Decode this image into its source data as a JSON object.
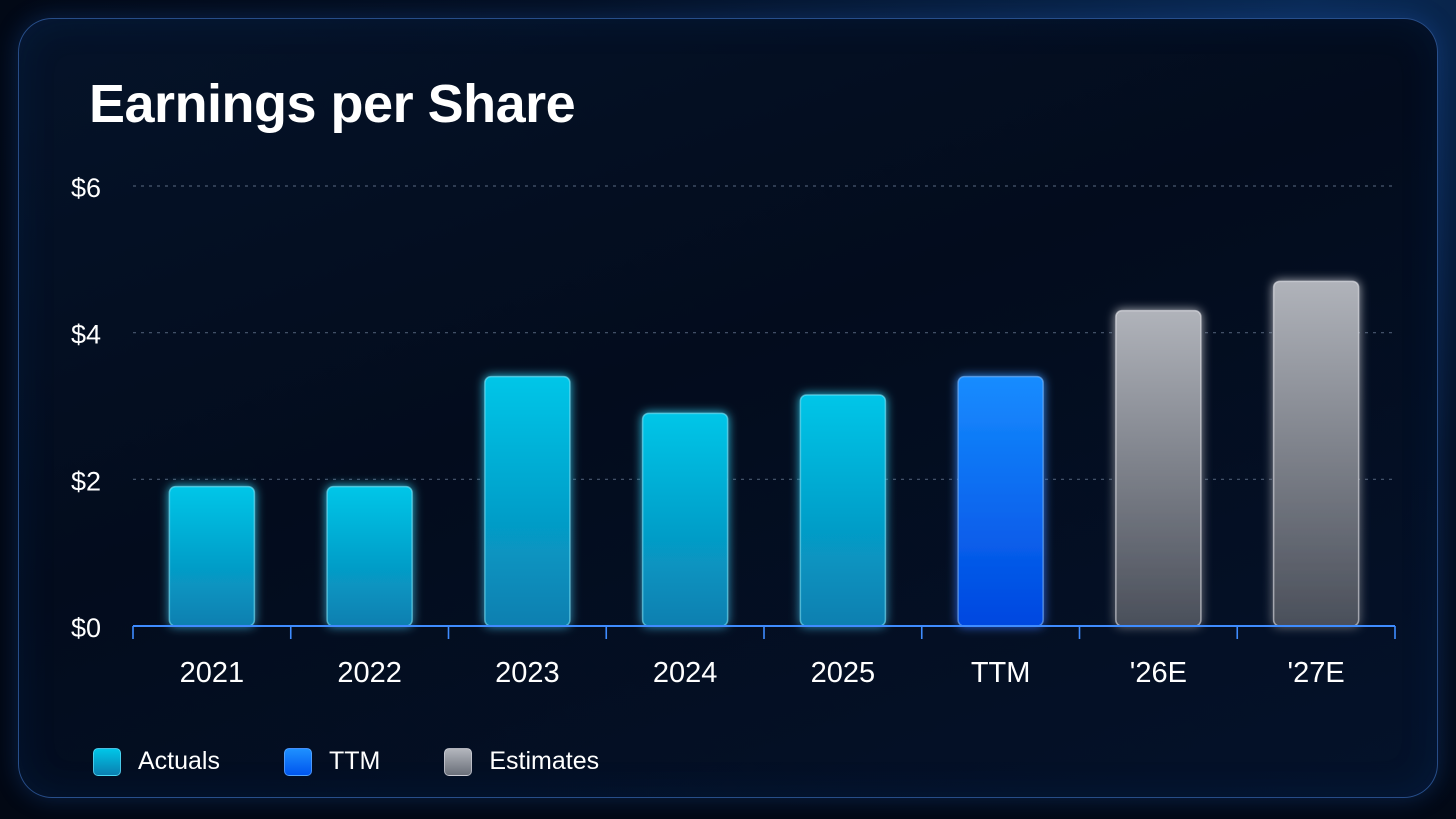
{
  "title": "Earnings per Share",
  "colors": {
    "actuals": "#00c3e6",
    "ttm": "#1787ff",
    "estimates": "#a5a8b0",
    "grid": "#5c6c85",
    "axis": "#3f8cff",
    "text": "#ffffff"
  },
  "legend": [
    {
      "label": "Actuals",
      "key": "actuals"
    },
    {
      "label": "TTM",
      "key": "ttm"
    },
    {
      "label": "Estimates",
      "key": "estimates"
    }
  ],
  "chart_data": {
    "type": "bar",
    "categories": [
      "2021",
      "2022",
      "2023",
      "2024",
      "2025",
      "TTM",
      "'26E",
      "'27E"
    ],
    "values": [
      1.9,
      1.9,
      3.4,
      2.9,
      3.15,
      3.4,
      4.3,
      4.7
    ],
    "bar_kinds": [
      "actuals",
      "actuals",
      "actuals",
      "actuals",
      "actuals",
      "ttm",
      "estimates",
      "estimates"
    ],
    "y_ticks": [
      {
        "value": 0,
        "label": "$0"
      },
      {
        "value": 2,
        "label": "$2"
      },
      {
        "value": 4,
        "label": "$4"
      },
      {
        "value": 6,
        "label": "$6"
      }
    ],
    "ylim": [
      0,
      6
    ],
    "grid": true,
    "legend_position": "bottom-left"
  }
}
